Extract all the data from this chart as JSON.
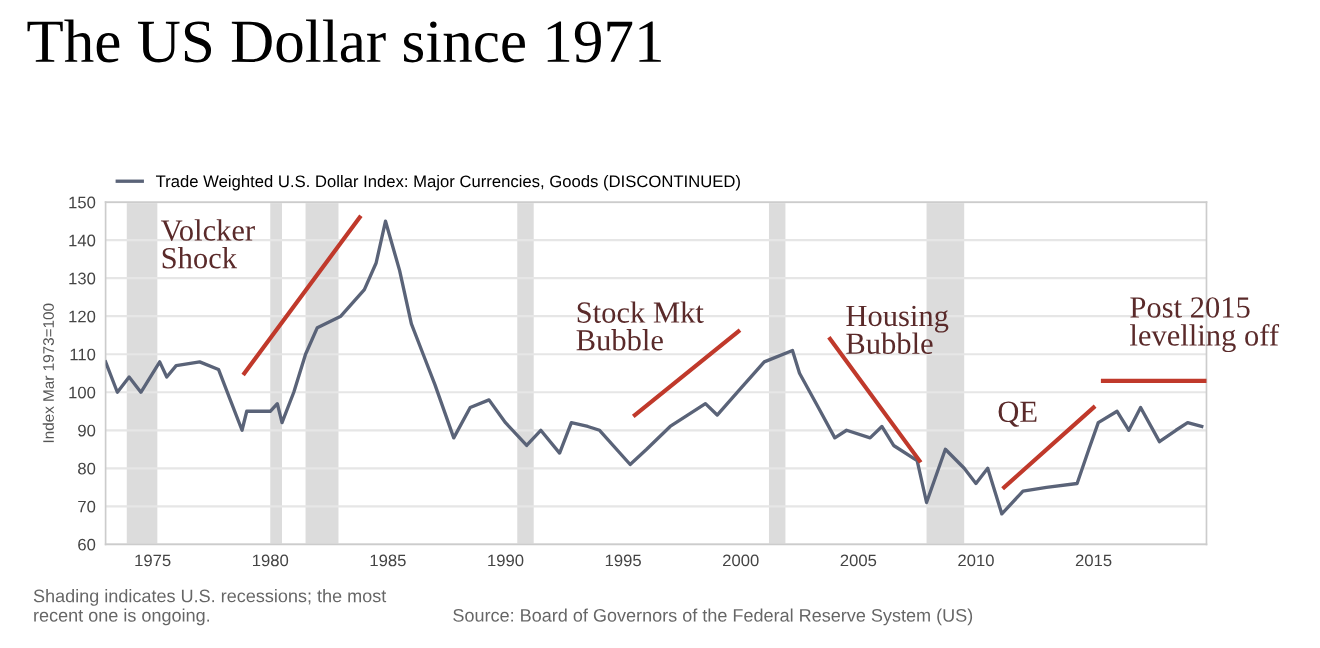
{
  "chart_data": {
    "type": "line",
    "title": "The US Dollar since 1971",
    "ylabel": "Index Mar 1973=100",
    "xlim": [
      1973,
      2019.8
    ],
    "xticks": [
      1975,
      1980,
      1985,
      1990,
      1995,
      2000,
      2005,
      2010,
      2015
    ],
    "ylim": [
      60,
      150
    ],
    "yticks": [
      60,
      70,
      80,
      90,
      100,
      110,
      120,
      130,
      140,
      150
    ],
    "grid": "y",
    "legend": "top left",
    "line_style": "solid",
    "series": [
      {
        "name": "Trade Weighted U.S. Dollar Index: Major Currencies, Goods (DISCONTINUED)",
        "color": "#5a6378",
        "x": [
          1973.0,
          1973.5,
          1974.0,
          1974.5,
          1975.3,
          1975.6,
          1976.0,
          1977.0,
          1977.8,
          1978.3,
          1978.8,
          1979.0,
          1980.0,
          1980.3,
          1980.5,
          1981.0,
          1981.5,
          1982.0,
          1983.0,
          1984.0,
          1984.5,
          1984.9,
          1985.5,
          1986.0,
          1986.5,
          1987.0,
          1987.8,
          1988.5,
          1989.3,
          1990.0,
          1990.9,
          1991.5,
          1992.3,
          1992.8,
          1993.5,
          1994.0,
          1995.3,
          1996.0,
          1997.0,
          1998.5,
          1999.0,
          2000.0,
          2001.0,
          2002.2,
          2002.5,
          2003.3,
          2004.0,
          2004.5,
          2005.5,
          2006.0,
          2006.5,
          2007.5,
          2007.9,
          2008.7,
          2009.5,
          2010.0,
          2010.5,
          2011.1,
          2012.0,
          2013.0,
          2014.3,
          2014.8,
          2015.2,
          2016.0,
          2016.5,
          2017.0,
          2017.8,
          2018.5,
          2019.0,
          2019.6
        ],
        "values": [
          108,
          100,
          104,
          100,
          108,
          104,
          107,
          108,
          106,
          98,
          90,
          95,
          95,
          97,
          92,
          100,
          110,
          117,
          120,
          127,
          134,
          145,
          132,
          118,
          110,
          102,
          88,
          96,
          98,
          92,
          86,
          90,
          84,
          92,
          91,
          90,
          81,
          85,
          91,
          97,
          94,
          101,
          108,
          111,
          105,
          96,
          88,
          90,
          88,
          91,
          86,
          82,
          71,
          85,
          80,
          76,
          80,
          68,
          74,
          75,
          76,
          85,
          92,
          95,
          90,
          96,
          87,
          90,
          92,
          91
        ]
      },
      {
        "color": "#c0392b",
        "x": [
          1978.9,
          1983.8
        ],
        "values": [
          105,
          146
        ]
      },
      {
        "color": "#c0392b",
        "x": [
          1995.5,
          1999.9
        ],
        "values": [
          94,
          116
        ]
      },
      {
        "color": "#c0392b",
        "x": [
          2003.8,
          2007.6
        ],
        "values": [
          114,
          82
        ]
      },
      {
        "color": "#c0392b",
        "x": [
          2011.2,
          2015.0
        ],
        "values": [
          75,
          96
        ]
      },
      {
        "color": "#c0392b",
        "x": [
          2015.4,
          2019.8
        ],
        "values": [
          103,
          103
        ]
      }
    ],
    "bands": [
      {
        "axis": "x",
        "from": 1973.9,
        "to": 1975.2,
        "color": "#dcdcdc"
      },
      {
        "axis": "x",
        "from": 1980.0,
        "to": 1980.5,
        "color": "#dcdcdc"
      },
      {
        "axis": "x",
        "from": 1981.5,
        "to": 1982.9,
        "color": "#dcdcdc"
      },
      {
        "axis": "x",
        "from": 1990.5,
        "to": 1991.2,
        "color": "#dcdcdc"
      },
      {
        "axis": "x",
        "from": 2001.2,
        "to": 2001.9,
        "color": "#dcdcdc"
      },
      {
        "axis": "x",
        "from": 2007.9,
        "to": 2009.5,
        "color": "#dcdcdc"
      }
    ],
    "annotations": [
      "Volcker\nShock",
      "Stock Mkt\nBubble",
      "Housing\nBubble",
      "QE",
      "Post 2015\nlevelling off",
      "Shading indicates U.S. recessions; the most\nrecent one is ongoing.",
      "Source: Board of Governors of the Federal Reserve System (US)"
    ]
  }
}
